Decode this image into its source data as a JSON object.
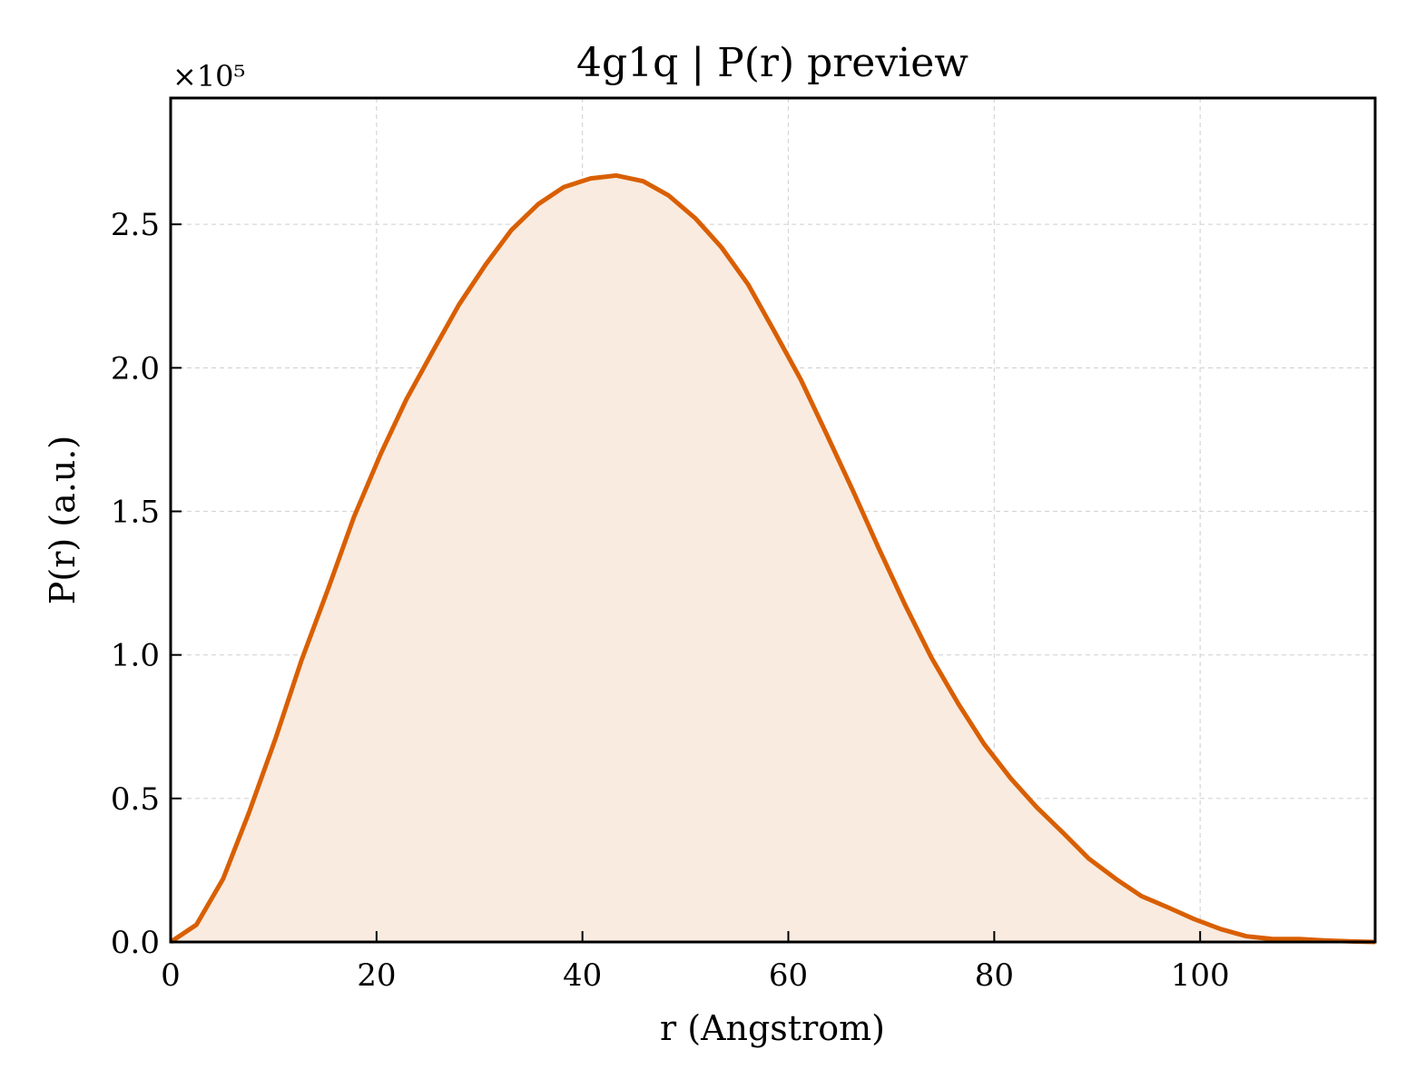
{
  "chart_data": {
    "type": "area",
    "title": "4g1q | P(r) preview",
    "xlabel": "r (Angstrom)",
    "ylabel": "P(r) (a.u.)",
    "y_multiplier_label": "×10⁵",
    "xlim": [
      0,
      117
    ],
    "ylim": [
      0,
      2.94
    ],
    "x_ticks": [
      0,
      20,
      40,
      60,
      80,
      100
    ],
    "x_tick_labels": [
      "0",
      "20",
      "40",
      "60",
      "80",
      "100"
    ],
    "y_ticks": [
      0,
      0.5,
      1.0,
      1.5,
      2.0,
      2.5
    ],
    "y_tick_labels": [
      "0.0",
      "0.5",
      "1.0",
      "1.5",
      "2.0",
      "2.5"
    ],
    "grid": true,
    "line_color": "#d95f02",
    "fill_color": "#f9ebe0",
    "series": [
      {
        "x": [
          0,
          2.5,
          5.1,
          7.6,
          10.2,
          12.7,
          15.3,
          17.8,
          20.4,
          22.9,
          25.5,
          28.0,
          30.6,
          33.1,
          35.7,
          38.2,
          40.8,
          43.3,
          45.9,
          48.4,
          51.0,
          53.5,
          56.1,
          58.6,
          61.2,
          63.7,
          66.3,
          68.8,
          71.4,
          73.9,
          76.5,
          79.0,
          81.6,
          84.1,
          86.7,
          89.2,
          91.8,
          94.3,
          96.9,
          99.4,
          102.0,
          104.5,
          107.1,
          109.6,
          112.2,
          114.7,
          117.0
        ],
        "values": [
          0.0,
          0.06,
          0.22,
          0.45,
          0.71,
          0.98,
          1.23,
          1.48,
          1.7,
          1.89,
          2.06,
          2.22,
          2.36,
          2.48,
          2.57,
          2.63,
          2.66,
          2.67,
          2.65,
          2.6,
          2.52,
          2.42,
          2.29,
          2.13,
          1.96,
          1.77,
          1.57,
          1.37,
          1.17,
          0.99,
          0.83,
          0.69,
          0.57,
          0.47,
          0.38,
          0.29,
          0.22,
          0.16,
          0.12,
          0.08,
          0.045,
          0.02,
          0.01,
          0.01,
          0.005,
          0.002,
          0.0
        ]
      }
    ]
  }
}
